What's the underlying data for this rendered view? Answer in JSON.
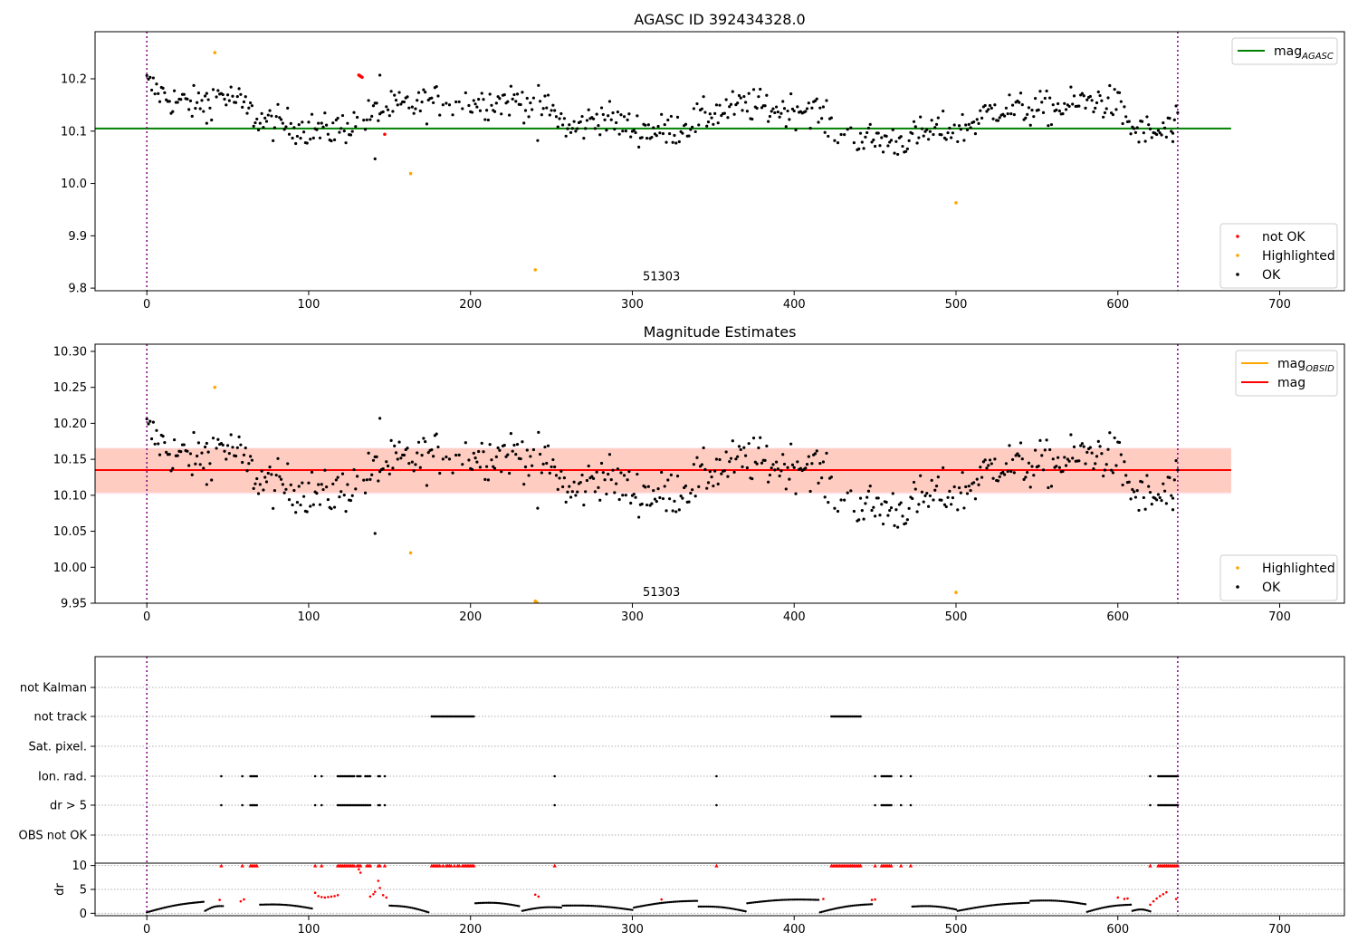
{
  "chart_data": [
    {
      "type": "scatter",
      "title": "AGASC ID 392434328.0",
      "xlim": [
        -32,
        740
      ],
      "ylim": [
        9.795,
        10.29
      ],
      "xticks": [
        0,
        100,
        200,
        300,
        400,
        500,
        600,
        700
      ],
      "yticks": [
        9.8,
        9.9,
        10.0,
        10.1,
        10.2
      ],
      "ytick_labels": [
        "9.8",
        "9.9",
        "10.0",
        "10.1",
        "10.2"
      ],
      "annotation": {
        "text": "51303",
        "x": 318,
        "y": 9.815
      },
      "vlines": [
        0,
        637
      ],
      "hlines": [
        {
          "name": "mag_AGASC",
          "label": "mag",
          "label_sub": "AGASC",
          "y": 10.105,
          "x0": -32,
          "x1": 670,
          "color": "#008000"
        }
      ],
      "points": {
        "not_ok": {
          "label": "not OK",
          "color": "#ff0000",
          "xy": [
            [
              131,
              10.207
            ],
            [
              132,
              10.205
            ],
            [
              133,
              10.203
            ],
            [
              147,
              10.094
            ]
          ]
        },
        "highlighted": {
          "label": "Highlighted",
          "color": "#ffa500",
          "xy": [
            [
              42,
              10.25
            ],
            [
              163,
              10.019
            ],
            [
              240,
              9.835
            ],
            [
              500,
              9.963
            ]
          ]
        },
        "ok": {
          "label": "OK",
          "color": "#000000",
          "series_key": "ok_mag"
        }
      },
      "legend_top": "top-right",
      "legend_bottom": "bottom-right"
    },
    {
      "type": "scatter",
      "title": "Magnitude Estimates",
      "xlim": [
        -32,
        740
      ],
      "ylim": [
        9.95,
        10.31
      ],
      "xticks": [
        0,
        100,
        200,
        300,
        400,
        500,
        600,
        700
      ],
      "yticks": [
        9.95,
        10.0,
        10.05,
        10.1,
        10.15,
        10.2,
        10.25,
        10.3
      ],
      "ytick_labels": [
        "9.95",
        "10.00",
        "10.05",
        "10.10",
        "10.15",
        "10.20",
        "10.25",
        "10.30"
      ],
      "annotation": {
        "text": "51303",
        "x": 318,
        "y": 9.96
      },
      "vlines": [
        0,
        637
      ],
      "band_obsid": {
        "y0": 10.104,
        "y1": 10.165,
        "x0": -32,
        "x1": 670,
        "color": "#ffa07a"
      },
      "band_mag": {
        "y0": 10.102,
        "y1": 10.166,
        "x0": -32,
        "x1": 670,
        "color": "#ffc0cb"
      },
      "hlines": [
        {
          "name": "mag_OBSID",
          "label": "mag",
          "label_sub": "OBSID",
          "y": 10.135,
          "x0": -32,
          "x1": 670,
          "color": "#ffa500"
        },
        {
          "name": "mag",
          "label": "mag",
          "label_sub": "",
          "y": 10.135,
          "x0": -32,
          "x1": 670,
          "color": "#ff0000"
        }
      ],
      "points": {
        "highlighted": {
          "label": "Highlighted",
          "color": "#ffa500",
          "xy": [
            [
              42,
              10.25
            ],
            [
              163,
              10.02
            ],
            [
              240,
              9.953
            ],
            [
              241,
              9.951
            ],
            [
              500,
              9.965
            ]
          ]
        },
        "ok": {
          "label": "OK",
          "color": "#000000",
          "series_key": "ok_mag"
        }
      },
      "legend_top": "top-right",
      "legend_bottom": "bottom-right"
    },
    {
      "type": "scatter",
      "title": "",
      "xlim": [
        -32,
        740
      ],
      "xticks": [
        0,
        100,
        200,
        300,
        400,
        500,
        600,
        700
      ],
      "flag_rows": [
        "not Kalman",
        "not track",
        "Sat. pixel.",
        "Ion. rad.",
        "dr > 5",
        "OBS not OK"
      ],
      "flag_points": {
        "not track": [
          [
            176,
            202
          ],
          [
            423,
            441
          ]
        ],
        "Ion. rad.": [
          [
            46,
            46
          ],
          [
            59,
            59
          ],
          [
            64,
            68
          ],
          [
            104,
            104
          ],
          [
            108,
            108
          ],
          [
            118,
            128
          ],
          [
            130,
            132
          ],
          [
            135,
            138
          ],
          [
            143,
            144
          ],
          [
            147,
            147
          ],
          [
            252,
            252
          ],
          [
            352,
            352
          ],
          [
            450,
            450
          ],
          [
            454,
            460
          ],
          [
            466,
            466
          ],
          [
            472,
            472
          ],
          [
            620,
            620
          ],
          [
            625,
            637
          ]
        ],
        "dr > 5": [
          [
            46,
            46
          ],
          [
            59,
            59
          ],
          [
            64,
            68
          ],
          [
            104,
            104
          ],
          [
            108,
            108
          ],
          [
            118,
            138
          ],
          [
            143,
            144
          ],
          [
            147,
            147
          ],
          [
            252,
            252
          ],
          [
            352,
            352
          ],
          [
            450,
            450
          ],
          [
            454,
            460
          ],
          [
            466,
            466
          ],
          [
            472,
            472
          ],
          [
            620,
            620
          ],
          [
            625,
            637
          ]
        ]
      },
      "vlines": [
        0,
        637
      ],
      "dr_panel": {
        "ylabel": "dr",
        "ylim": [
          -0.5,
          10.5
        ],
        "yticks": [
          0,
          5,
          10
        ],
        "ytick_labels": [
          "0",
          "5",
          "10"
        ],
        "capped_markers_x": [
          46,
          59,
          64,
          65,
          66,
          67,
          68,
          104,
          108,
          118,
          119,
          120,
          121,
          122,
          123,
          124,
          125,
          126,
          127,
          128,
          130,
          131,
          132,
          136,
          137,
          138,
          143,
          144,
          147,
          176,
          177,
          178,
          179,
          180,
          181,
          183,
          185,
          186,
          187,
          188,
          190,
          192,
          193,
          195,
          196,
          197,
          198,
          199,
          200,
          201,
          202,
          252,
          352,
          423,
          424,
          425,
          426,
          427,
          428,
          429,
          430,
          431,
          432,
          433,
          434,
          435,
          436,
          437,
          438,
          439,
          440,
          441,
          450,
          454,
          455,
          456,
          457,
          458,
          459,
          460,
          466,
          472,
          620,
          625,
          626,
          627,
          628,
          629,
          630,
          631,
          632,
          633,
          634,
          635,
          636,
          637
        ],
        "red_points": [
          [
            45,
            2.8
          ],
          [
            58,
            2.5
          ],
          [
            60,
            2.9
          ],
          [
            104,
            4.3
          ],
          [
            106,
            3.6
          ],
          [
            108,
            3.4
          ],
          [
            110,
            3.3
          ],
          [
            112,
            3.4
          ],
          [
            114,
            3.5
          ],
          [
            116,
            3.6
          ],
          [
            118,
            3.8
          ],
          [
            131,
            9.2
          ],
          [
            132,
            8.5
          ],
          [
            138,
            3.5
          ],
          [
            140,
            4.0
          ],
          [
            141,
            4.5
          ],
          [
            143,
            6.8
          ],
          [
            144,
            5.3
          ],
          [
            146,
            3.8
          ],
          [
            148,
            3.3
          ],
          [
            240,
            3.9
          ],
          [
            242,
            3.5
          ],
          [
            318,
            2.9
          ],
          [
            418,
            3.0
          ],
          [
            448,
            2.8
          ],
          [
            450,
            2.9
          ],
          [
            600,
            3.3
          ],
          [
            604,
            3.0
          ],
          [
            606,
            3.1
          ],
          [
            620,
            1.8
          ],
          [
            622,
            2.5
          ],
          [
            624,
            3.1
          ],
          [
            626,
            3.6
          ],
          [
            628,
            4.0
          ],
          [
            630,
            4.4
          ],
          [
            636,
            3.0
          ]
        ]
      }
    }
  ]
}
